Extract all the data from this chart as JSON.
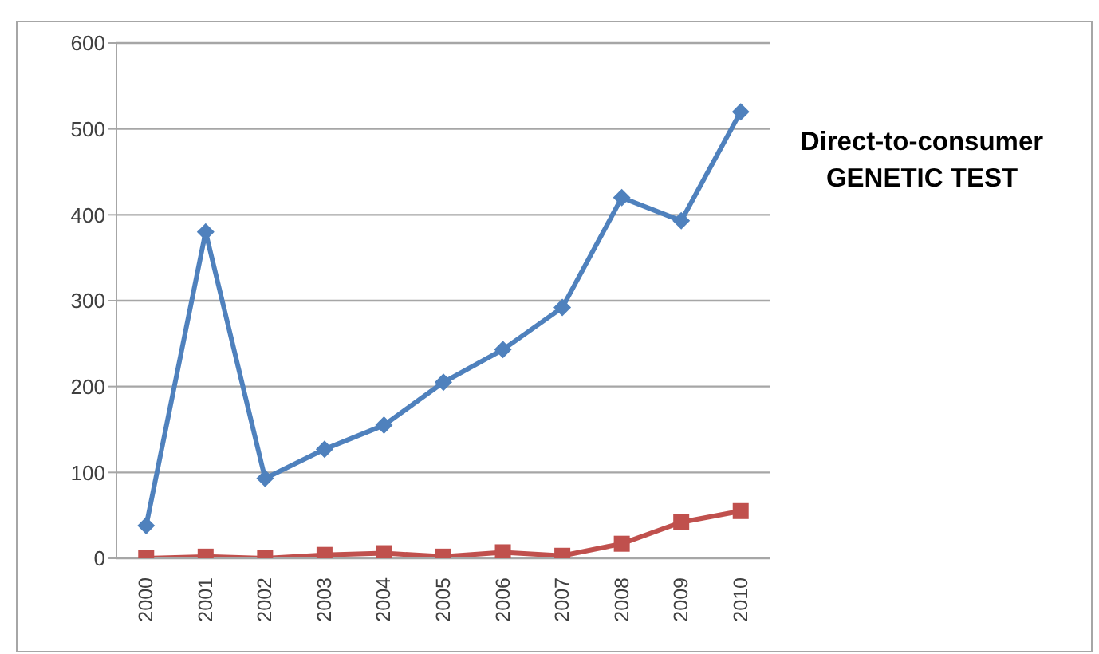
{
  "chart_data": {
    "type": "line",
    "title": "Direct-to-consumer GENETIC TEST",
    "categories": [
      "2000",
      "2001",
      "2002",
      "2003",
      "2004",
      "2005",
      "2006",
      "2007",
      "2008",
      "2009",
      "2010"
    ],
    "series": [
      {
        "color": "#4f81bd",
        "marker": "diamond",
        "values": [
          38,
          380,
          93,
          127,
          155,
          205,
          243,
          292,
          420,
          393,
          520
        ]
      },
      {
        "color": "#c0504d",
        "marker": "square",
        "values": [
          0,
          2,
          0,
          4,
          6,
          2,
          7,
          3,
          17,
          42,
          55
        ]
      }
    ],
    "ylim": [
      0,
      600
    ],
    "yticks": [
      0,
      100,
      200,
      300,
      400,
      500,
      600
    ],
    "grid": "y"
  }
}
